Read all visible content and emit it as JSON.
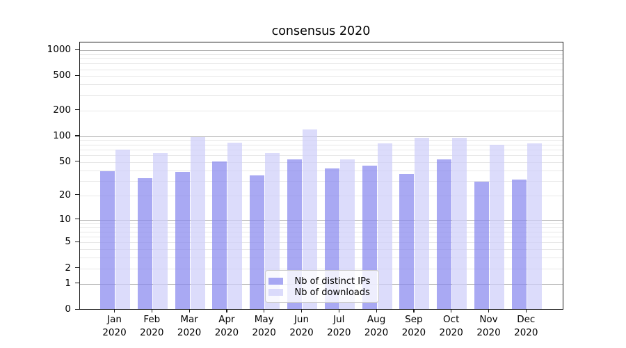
{
  "title": "consensus 2020",
  "colors": {
    "distinct_ips": "rgba(136,136,238,0.72)",
    "downloads": "rgba(206,206,250,0.72)",
    "grid_major": "#b0b0b0",
    "grid_minor": "#e7e7e7",
    "axis": "#1a1a1a"
  },
  "legend": {
    "items": [
      {
        "label": "Nb of distinct IPs"
      },
      {
        "label": "Nb of downloads"
      }
    ]
  },
  "chart_data": {
    "type": "bar",
    "title": "consensus 2020",
    "categories": [
      "Jan 2020",
      "Feb 2020",
      "Mar 2020",
      "Apr 2020",
      "May 2020",
      "Jun 2020",
      "Jul 2020",
      "Aug 2020",
      "Sep 2020",
      "Oct 2020",
      "Nov 2020",
      "Dec 2020"
    ],
    "month_labels": [
      "Jan",
      "Feb",
      "Mar",
      "Apr",
      "May",
      "Jun",
      "Jul",
      "Aug",
      "Sep",
      "Oct",
      "Nov",
      "Dec"
    ],
    "year_label": "2020",
    "series": [
      {
        "name": "Nb of distinct IPs",
        "color_key": "distinct_ips",
        "values": [
          39,
          32,
          38,
          51,
          35,
          54,
          42,
          45,
          36,
          54,
          29,
          31
        ]
      },
      {
        "name": "Nb of downloads",
        "color_key": "downloads",
        "values": [
          70,
          63,
          98,
          84,
          63,
          120,
          54,
          82,
          96,
          96,
          80,
          82
        ]
      }
    ],
    "yscale": "symlog",
    "ytick_values": [
      1000,
      500,
      200,
      100,
      50,
      20,
      10,
      5,
      2,
      1,
      0
    ],
    "minor_grid_values": [
      3,
      4,
      6,
      7,
      8,
      9,
      30,
      40,
      60,
      70,
      80,
      90,
      300,
      400,
      600,
      700,
      800,
      900
    ],
    "ylim": [
      0,
      1230
    ],
    "grid": true,
    "legend_position": "lower center"
  }
}
